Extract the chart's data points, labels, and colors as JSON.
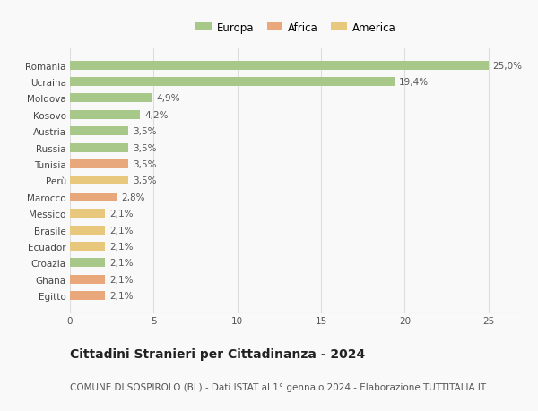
{
  "categories": [
    "Egitto",
    "Ghana",
    "Croazia",
    "Ecuador",
    "Brasile",
    "Messico",
    "Marocco",
    "Perù",
    "Tunisia",
    "Russia",
    "Austria",
    "Kosovo",
    "Moldova",
    "Ucraina",
    "Romania"
  ],
  "values": [
    2.1,
    2.1,
    2.1,
    2.1,
    2.1,
    2.1,
    2.8,
    3.5,
    3.5,
    3.5,
    3.5,
    4.2,
    4.9,
    19.4,
    25.0
  ],
  "labels": [
    "2,1%",
    "2,1%",
    "2,1%",
    "2,1%",
    "2,1%",
    "2,1%",
    "2,8%",
    "3,5%",
    "3,5%",
    "3,5%",
    "3,5%",
    "4,2%",
    "4,9%",
    "19,4%",
    "25,0%"
  ],
  "colors": [
    "#E8A87C",
    "#E8A87C",
    "#A8C88A",
    "#E8C87C",
    "#E8C87C",
    "#E8C87C",
    "#E8A87C",
    "#E8C87C",
    "#E8A87C",
    "#A8C88A",
    "#A8C88A",
    "#A8C88A",
    "#A8C88A",
    "#A8C88A",
    "#A8C88A"
  ],
  "legend_labels": [
    "Europa",
    "Africa",
    "America"
  ],
  "legend_colors": [
    "#A8C88A",
    "#E8A87C",
    "#E8C87C"
  ],
  "title": "Cittadini Stranieri per Cittadinanza - 2024",
  "subtitle": "COMUNE DI SOSPIROLO (BL) - Dati ISTAT al 1° gennaio 2024 - Elaborazione TUTTITALIA.IT",
  "xlim": [
    0,
    27
  ],
  "xticks": [
    0,
    5,
    10,
    15,
    20,
    25
  ],
  "background_color": "#f9f9f9",
  "grid_color": "#dddddd",
  "title_fontsize": 10,
  "subtitle_fontsize": 7.5,
  "label_fontsize": 7.5,
  "tick_fontsize": 7.5,
  "bar_height": 0.55
}
